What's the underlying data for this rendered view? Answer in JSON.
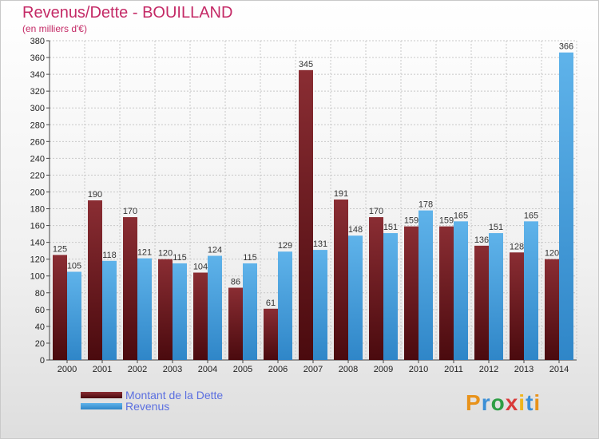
{
  "header": {
    "title": "Revenus/Dette - BOUILLAND",
    "subtitle": "(en milliers d'€)"
  },
  "legend": {
    "series1": "Montant de la Dette",
    "series2": "Revenus"
  },
  "logo": {
    "text": "Proxiti"
  },
  "colors": {
    "dette_top": "#8a2d33",
    "dette_bottom": "#4a0a0e",
    "revenus_top": "#5fb3ea",
    "revenus_bottom": "#2f86c8",
    "title": "#c42a66",
    "legend_text": "#5b6fe0"
  },
  "chart_data": {
    "type": "bar",
    "title": "Revenus/Dette - BOUILLAND",
    "ylabel": "(en milliers d'€)",
    "xlabel": "",
    "categories": [
      "2000",
      "2001",
      "2002",
      "2003",
      "2004",
      "2005",
      "2006",
      "2007",
      "2008",
      "2009",
      "2010",
      "2011",
      "2012",
      "2013",
      "2014"
    ],
    "series": [
      {
        "name": "Montant de la Dette",
        "values": [
          125,
          190,
          170,
          120,
          104,
          86,
          61,
          345,
          191,
          170,
          159,
          159,
          136,
          128,
          120
        ]
      },
      {
        "name": "Revenus",
        "values": [
          105,
          118,
          121,
          115,
          124,
          115,
          129,
          131,
          148,
          151,
          178,
          165,
          151,
          165,
          366
        ]
      }
    ],
    "ylim": [
      0,
      380
    ],
    "ytick_step": 20,
    "grid": true,
    "legend_position": "bottom-left"
  }
}
